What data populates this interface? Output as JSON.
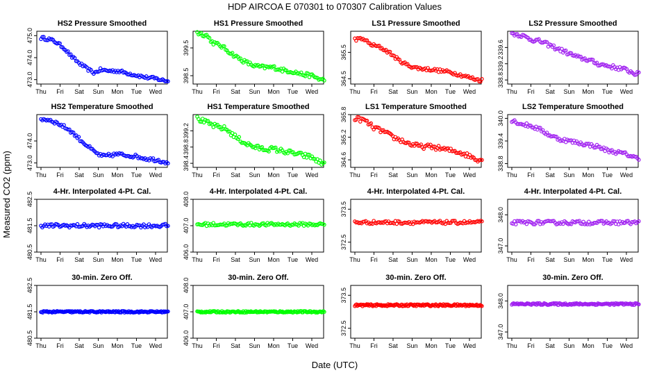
{
  "figure": {
    "title": "HDP    AIRCOA E    070301 to 070307    Calibration Values",
    "xlabel": "Date (UTC)",
    "ylabel": "Measured CO2 (ppm)"
  },
  "colors": {
    "blue": "#0000ff",
    "green": "#00ff00",
    "red": "#ff0000",
    "purple": "#a020f0"
  },
  "chart_data": [
    {
      "type": "scatter",
      "title": "HS2 Pressure Smoothed",
      "color": "blue",
      "ylim": [
        472.8,
        475.2
      ],
      "yticks": [
        "473.0",
        "474.0",
        "475.0"
      ],
      "yticks_num": [
        473.0,
        474.0,
        475.0
      ],
      "x": [
        "Thu",
        "Fri",
        "Sat",
        "Sun",
        "Mon",
        "Tue",
        "Wed"
      ],
      "series_keys": [
        [
          0,
          474.9
        ],
        [
          0.4,
          474.85
        ],
        [
          0.8,
          474.7
        ],
        [
          1.2,
          474.45
        ],
        [
          1.6,
          474.05
        ],
        [
          2.0,
          473.75
        ],
        [
          2.4,
          473.5
        ],
        [
          2.8,
          473.3
        ],
        [
          3.1,
          473.45
        ],
        [
          3.5,
          473.4
        ],
        [
          4.0,
          473.4
        ],
        [
          4.5,
          473.3
        ],
        [
          5.0,
          473.2
        ],
        [
          5.5,
          473.1
        ],
        [
          6.0,
          473.05
        ],
        [
          6.5,
          472.95
        ]
      ],
      "noise": 0.07
    },
    {
      "type": "scatter",
      "title": "HS1 Pressure Smoothed",
      "color": "green",
      "ylim": [
        398.2,
        400.1
      ],
      "yticks": [
        "398.5",
        "399.5"
      ],
      "yticks_num": [
        398.5,
        399.5
      ],
      "x": [
        "Thu",
        "Fri",
        "Sat",
        "Sun",
        "Mon",
        "Tue",
        "Wed"
      ],
      "series_keys": [
        [
          0,
          400.05
        ],
        [
          0.5,
          399.95
        ],
        [
          0.8,
          399.7
        ],
        [
          1.3,
          399.55
        ],
        [
          1.6,
          399.4
        ],
        [
          2.0,
          399.2
        ],
        [
          2.5,
          399.0
        ],
        [
          3.0,
          398.85
        ],
        [
          3.5,
          398.8
        ],
        [
          4.0,
          398.8
        ],
        [
          4.5,
          398.7
        ],
        [
          5.0,
          398.65
        ],
        [
          5.5,
          398.55
        ],
        [
          6.0,
          398.5
        ],
        [
          6.5,
          398.35
        ]
      ],
      "noise": 0.07
    },
    {
      "type": "scatter",
      "title": "LS1 Pressure Smoothed",
      "color": "red",
      "ylim": [
        364.3,
        366.3
      ],
      "yticks": [
        "364.5",
        "365.5"
      ],
      "yticks_num": [
        364.5,
        365.5
      ],
      "x": [
        "Thu",
        "Fri",
        "Sat",
        "Sun",
        "Mon",
        "Tue",
        "Wed"
      ],
      "series_keys": [
        [
          0,
          366.0
        ],
        [
          0.5,
          366.0
        ],
        [
          0.8,
          365.8
        ],
        [
          1.3,
          365.7
        ],
        [
          1.8,
          365.5
        ],
        [
          2.3,
          365.2
        ],
        [
          2.8,
          365.0
        ],
        [
          3.3,
          364.9
        ],
        [
          4.0,
          364.85
        ],
        [
          4.5,
          364.8
        ],
        [
          5.0,
          364.75
        ],
        [
          5.5,
          364.65
        ],
        [
          6.0,
          364.55
        ],
        [
          6.5,
          364.45
        ]
      ],
      "noise": 0.06
    },
    {
      "type": "scatter",
      "title": "LS2 Pressure Smoothed",
      "color": "purple",
      "ylim": [
        338.7,
        340.0
      ],
      "yticks": [
        "338.8",
        "339.2",
        "339.6"
      ],
      "yticks_num": [
        338.8,
        339.2,
        339.6
      ],
      "x": [
        "Thu",
        "Fri",
        "Sat",
        "Sun",
        "Mon",
        "Tue",
        "Wed"
      ],
      "series_keys": [
        [
          0,
          339.95
        ],
        [
          0.5,
          339.9
        ],
        [
          1.0,
          339.8
        ],
        [
          1.5,
          339.75
        ],
        [
          2.0,
          339.65
        ],
        [
          2.5,
          339.55
        ],
        [
          3.0,
          339.45
        ],
        [
          3.5,
          339.35
        ],
        [
          4.0,
          339.3
        ],
        [
          4.5,
          339.2
        ],
        [
          5.0,
          339.15
        ],
        [
          5.5,
          339.1
        ],
        [
          6.0,
          339.05
        ],
        [
          6.5,
          338.95
        ]
      ],
      "noise": 0.05
    },
    {
      "type": "scatter",
      "title": "HS2 Temperature Smoothed",
      "color": "blue",
      "ylim": [
        472.8,
        475.2
      ],
      "yticks": [
        "473.0",
        "474.0"
      ],
      "yticks_num": [
        473.0,
        474.0
      ],
      "x": [
        "Thu",
        "Fri",
        "Sat",
        "Sun",
        "Mon",
        "Tue",
        "Wed"
      ],
      "series_keys": [
        [
          0,
          475.0
        ],
        [
          0.5,
          474.95
        ],
        [
          1.0,
          474.75
        ],
        [
          1.5,
          474.5
        ],
        [
          2.0,
          474.1
        ],
        [
          2.4,
          473.8
        ],
        [
          2.8,
          473.5
        ],
        [
          3.2,
          473.3
        ],
        [
          3.6,
          473.35
        ],
        [
          4.0,
          473.4
        ],
        [
          4.5,
          473.35
        ],
        [
          5.0,
          473.3
        ],
        [
          5.5,
          473.2
        ],
        [
          6.0,
          473.15
        ],
        [
          6.5,
          473.05
        ]
      ],
      "noise": 0.08
    },
    {
      "type": "scatter",
      "title": "HS1 Temperature Smoothed",
      "color": "green",
      "ylim": [
        398.3,
        399.6
      ],
      "yticks": [
        "398.4",
        "398.8",
        "399.2"
      ],
      "yticks_num": [
        398.4,
        398.8,
        399.2
      ],
      "x": [
        "Thu",
        "Fri",
        "Sat",
        "Sun",
        "Mon",
        "Tue",
        "Wed"
      ],
      "series_keys": [
        [
          0,
          399.5
        ],
        [
          0.5,
          399.4
        ],
        [
          1.0,
          399.3
        ],
        [
          1.5,
          399.25
        ],
        [
          2.0,
          399.05
        ],
        [
          2.5,
          398.9
        ],
        [
          3.0,
          398.8
        ],
        [
          3.5,
          398.75
        ],
        [
          4.0,
          398.75
        ],
        [
          4.5,
          398.7
        ],
        [
          5.0,
          398.65
        ],
        [
          5.5,
          398.6
        ],
        [
          6.0,
          398.55
        ],
        [
          6.5,
          398.4
        ]
      ],
      "noise": 0.06
    },
    {
      "type": "scatter",
      "title": "LS1 Temperature Smoothed",
      "color": "red",
      "ylim": [
        364.4,
        365.8
      ],
      "yticks": [
        "364.6",
        "365.2",
        "365.8"
      ],
      "yticks_num": [
        364.6,
        365.2,
        365.8
      ],
      "x": [
        "Thu",
        "Fri",
        "Sat",
        "Sun",
        "Mon",
        "Tue",
        "Wed"
      ],
      "series_keys": [
        [
          0,
          365.7
        ],
        [
          0.5,
          365.65
        ],
        [
          1.0,
          365.45
        ],
        [
          1.5,
          365.35
        ],
        [
          2.0,
          365.2
        ],
        [
          2.5,
          365.1
        ],
        [
          3.0,
          365.0
        ],
        [
          3.5,
          364.95
        ],
        [
          4.0,
          364.95
        ],
        [
          4.5,
          364.9
        ],
        [
          5.0,
          364.85
        ],
        [
          5.5,
          364.8
        ],
        [
          6.0,
          364.7
        ],
        [
          6.5,
          364.6
        ]
      ],
      "noise": 0.06
    },
    {
      "type": "scatter",
      "title": "LS2 Temperature Smoothed",
      "color": "purple",
      "ylim": [
        338.7,
        340.1
      ],
      "yticks": [
        "338.8",
        "339.4",
        "340.0"
      ],
      "yticks_num": [
        338.8,
        339.4,
        340.0
      ],
      "x": [
        "Thu",
        "Fri",
        "Sat",
        "Sun",
        "Mon",
        "Tue",
        "Wed"
      ],
      "series_keys": [
        [
          0,
          339.95
        ],
        [
          0.5,
          339.85
        ],
        [
          1.0,
          339.8
        ],
        [
          1.5,
          339.7
        ],
        [
          2.0,
          339.55
        ],
        [
          2.5,
          339.45
        ],
        [
          3.0,
          339.4
        ],
        [
          3.5,
          339.35
        ],
        [
          4.0,
          339.3
        ],
        [
          4.5,
          339.25
        ],
        [
          5.0,
          339.15
        ],
        [
          5.5,
          339.1
        ],
        [
          6.0,
          339.05
        ],
        [
          6.5,
          338.95
        ]
      ],
      "noise": 0.05
    },
    {
      "type": "scatter",
      "title": "4-Hr. Interpolated 4-Pt. Cal.",
      "color": "blue",
      "ylim": [
        480.5,
        482.5
      ],
      "yticks": [
        "480.5",
        "481.5",
        "482.5"
      ],
      "yticks_num": [
        480.5,
        481.5,
        482.5
      ],
      "x": [
        "Thu",
        "Fri",
        "Sat",
        "Sun",
        "Mon",
        "Tue",
        "Wed"
      ],
      "series_keys": [
        [
          0,
          481.5
        ],
        [
          6.6,
          481.5
        ]
      ],
      "noise": 0.07
    },
    {
      "type": "scatter",
      "title": "4-Hr. Interpolated 4-Pt. Cal.",
      "color": "green",
      "ylim": [
        406.0,
        408.0
      ],
      "yticks": [
        "406.0",
        "407.0",
        "408.0"
      ],
      "yticks_num": [
        406.0,
        407.0,
        408.0
      ],
      "x": [
        "Thu",
        "Fri",
        "Sat",
        "Sun",
        "Mon",
        "Tue",
        "Wed"
      ],
      "series_keys": [
        [
          0,
          407.05
        ],
        [
          6.6,
          407.05
        ]
      ],
      "noise": 0.06
    },
    {
      "type": "scatter",
      "title": "4-Hr. Interpolated 4-Pt. Cal.",
      "color": "red",
      "ylim": [
        372.2,
        373.8
      ],
      "yticks": [
        "372.5",
        "373.5"
      ],
      "yticks_num": [
        372.5,
        373.5
      ],
      "x": [
        "Thu",
        "Fri",
        "Sat",
        "Sun",
        "Mon",
        "Tue",
        "Wed"
      ],
      "series_keys": [
        [
          0,
          373.1
        ],
        [
          6.6,
          373.1
        ]
      ],
      "noise": 0.05
    },
    {
      "type": "scatter",
      "title": "4-Hr. Interpolated 4-Pt. Cal.",
      "color": "purple",
      "ylim": [
        346.8,
        348.5
      ],
      "yticks": [
        "347.0",
        "348.0"
      ],
      "yticks_num": [
        347.0,
        348.0
      ],
      "x": [
        "Thu",
        "Fri",
        "Sat",
        "Sun",
        "Mon",
        "Tue",
        "Wed"
      ],
      "series_keys": [
        [
          0,
          347.75
        ],
        [
          6.6,
          347.75
        ]
      ],
      "noise": 0.06
    },
    {
      "type": "scatter",
      "title": "30-min. Zero Off.",
      "color": "blue",
      "ylim": [
        480.5,
        482.5
      ],
      "yticks": [
        "480.5",
        "481.5",
        "482.5"
      ],
      "yticks_num": [
        480.5,
        481.5,
        482.5
      ],
      "x": [
        "Thu",
        "Fri",
        "Sat",
        "Sun",
        "Mon",
        "Tue",
        "Wed"
      ],
      "series_keys": [
        [
          0,
          481.5
        ],
        [
          6.6,
          481.5
        ]
      ],
      "noise": 0.03
    },
    {
      "type": "scatter",
      "title": "30-min. Zero Off.",
      "color": "green",
      "ylim": [
        406.0,
        408.0
      ],
      "yticks": [
        "406.0",
        "407.0",
        "408.0"
      ],
      "yticks_num": [
        406.0,
        407.0,
        408.0
      ],
      "x": [
        "Thu",
        "Fri",
        "Sat",
        "Sun",
        "Mon",
        "Tue",
        "Wed"
      ],
      "series_keys": [
        [
          0,
          407.0
        ],
        [
          6.6,
          407.0
        ]
      ],
      "noise": 0.03
    },
    {
      "type": "scatter",
      "title": "30-min. Zero Off.",
      "color": "red",
      "ylim": [
        372.2,
        373.8
      ],
      "yticks": [
        "372.5",
        "373.5"
      ],
      "yticks_num": [
        372.5,
        373.5
      ],
      "x": [
        "Thu",
        "Fri",
        "Sat",
        "Sun",
        "Mon",
        "Tue",
        "Wed"
      ],
      "series_keys": [
        [
          0,
          373.2
        ],
        [
          6.6,
          373.2
        ]
      ],
      "noise": 0.03
    },
    {
      "type": "scatter",
      "title": "30-min. Zero Off.",
      "color": "purple",
      "ylim": [
        346.8,
        348.5
      ],
      "yticks": [
        "347.0",
        "348.0"
      ],
      "yticks_num": [
        347.0,
        348.0
      ],
      "x": [
        "Thu",
        "Fri",
        "Sat",
        "Sun",
        "Mon",
        "Tue",
        "Wed"
      ],
      "series_keys": [
        [
          0,
          347.9
        ],
        [
          6.6,
          347.9
        ]
      ],
      "noise": 0.03
    }
  ]
}
